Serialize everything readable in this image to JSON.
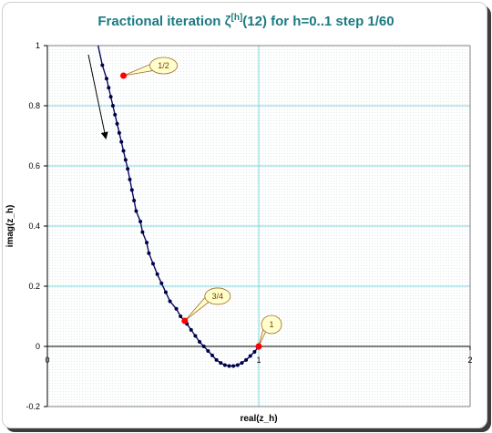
{
  "chart_data": {
    "type": "scatter",
    "title": {
      "prefix": "Fractional iteration ζ",
      "superscript": "[h]",
      "suffix": "(12) for h=0..1 step 1/60"
    },
    "xlabel": "real(z_h)",
    "ylabel": "imag(z_h)",
    "xlim": [
      0,
      2
    ],
    "ylim": [
      -0.2,
      1
    ],
    "xticks": [
      {
        "value": 0,
        "label": "0"
      },
      {
        "value": 1,
        "label": "1"
      },
      {
        "value": 2,
        "label": "2"
      }
    ],
    "yticks": [
      {
        "value": -0.2,
        "label": "-0.2"
      },
      {
        "value": 0,
        "label": "0"
      },
      {
        "value": 0.2,
        "label": "0.2"
      },
      {
        "value": 0.4,
        "label": "0.4"
      },
      {
        "value": 0.6,
        "label": "0.6"
      },
      {
        "value": 0.8,
        "label": "0.8"
      },
      {
        "value": 1,
        "label": "1"
      }
    ],
    "grid": true,
    "legend": "none",
    "colors": {
      "curve": "#0a0a5a",
      "marker": "#00004a",
      "highlight": "#ff0000",
      "grid": "#7fd6dc",
      "callout_fill": "#ffffcc",
      "callout_border": "#a06a2a"
    },
    "series": [
      {
        "x": [
          0.24,
          0.26,
          0.28,
          0.29,
          0.3,
          0.31,
          0.32,
          0.33,
          0.34,
          0.35,
          0.36,
          0.37,
          0.38,
          0.39,
          0.4,
          0.41,
          0.42,
          0.44,
          0.45,
          0.47,
          0.48,
          0.5,
          0.52,
          0.54,
          0.56,
          0.58,
          0.61,
          0.63,
          0.66,
          0.68,
          0.7,
          0.72,
          0.74,
          0.76,
          0.78,
          0.8,
          0.82,
          0.84,
          0.86,
          0.88,
          0.9,
          0.92,
          0.94,
          0.96,
          0.98,
          1.0
        ],
        "y": [
          1.0,
          0.935,
          0.89,
          0.86,
          0.83,
          0.8,
          0.77,
          0.74,
          0.71,
          0.68,
          0.65,
          0.62,
          0.59,
          0.555,
          0.52,
          0.485,
          0.45,
          0.415,
          0.38,
          0.345,
          0.31,
          0.275,
          0.24,
          0.21,
          0.18,
          0.15,
          0.125,
          0.1,
          0.075,
          0.055,
          0.035,
          0.015,
          0.0,
          -0.015,
          -0.03,
          -0.045,
          -0.055,
          -0.062,
          -0.065,
          -0.065,
          -0.062,
          -0.055,
          -0.045,
          -0.032,
          -0.018,
          0.0
        ]
      }
    ],
    "highlighted_points": [
      {
        "label": "1/2",
        "x": 0.36,
        "y": 0.9
      },
      {
        "label": "3/4",
        "x": 0.65,
        "y": 0.085
      },
      {
        "label": "1",
        "x": 1.0,
        "y": 0.0
      }
    ]
  }
}
